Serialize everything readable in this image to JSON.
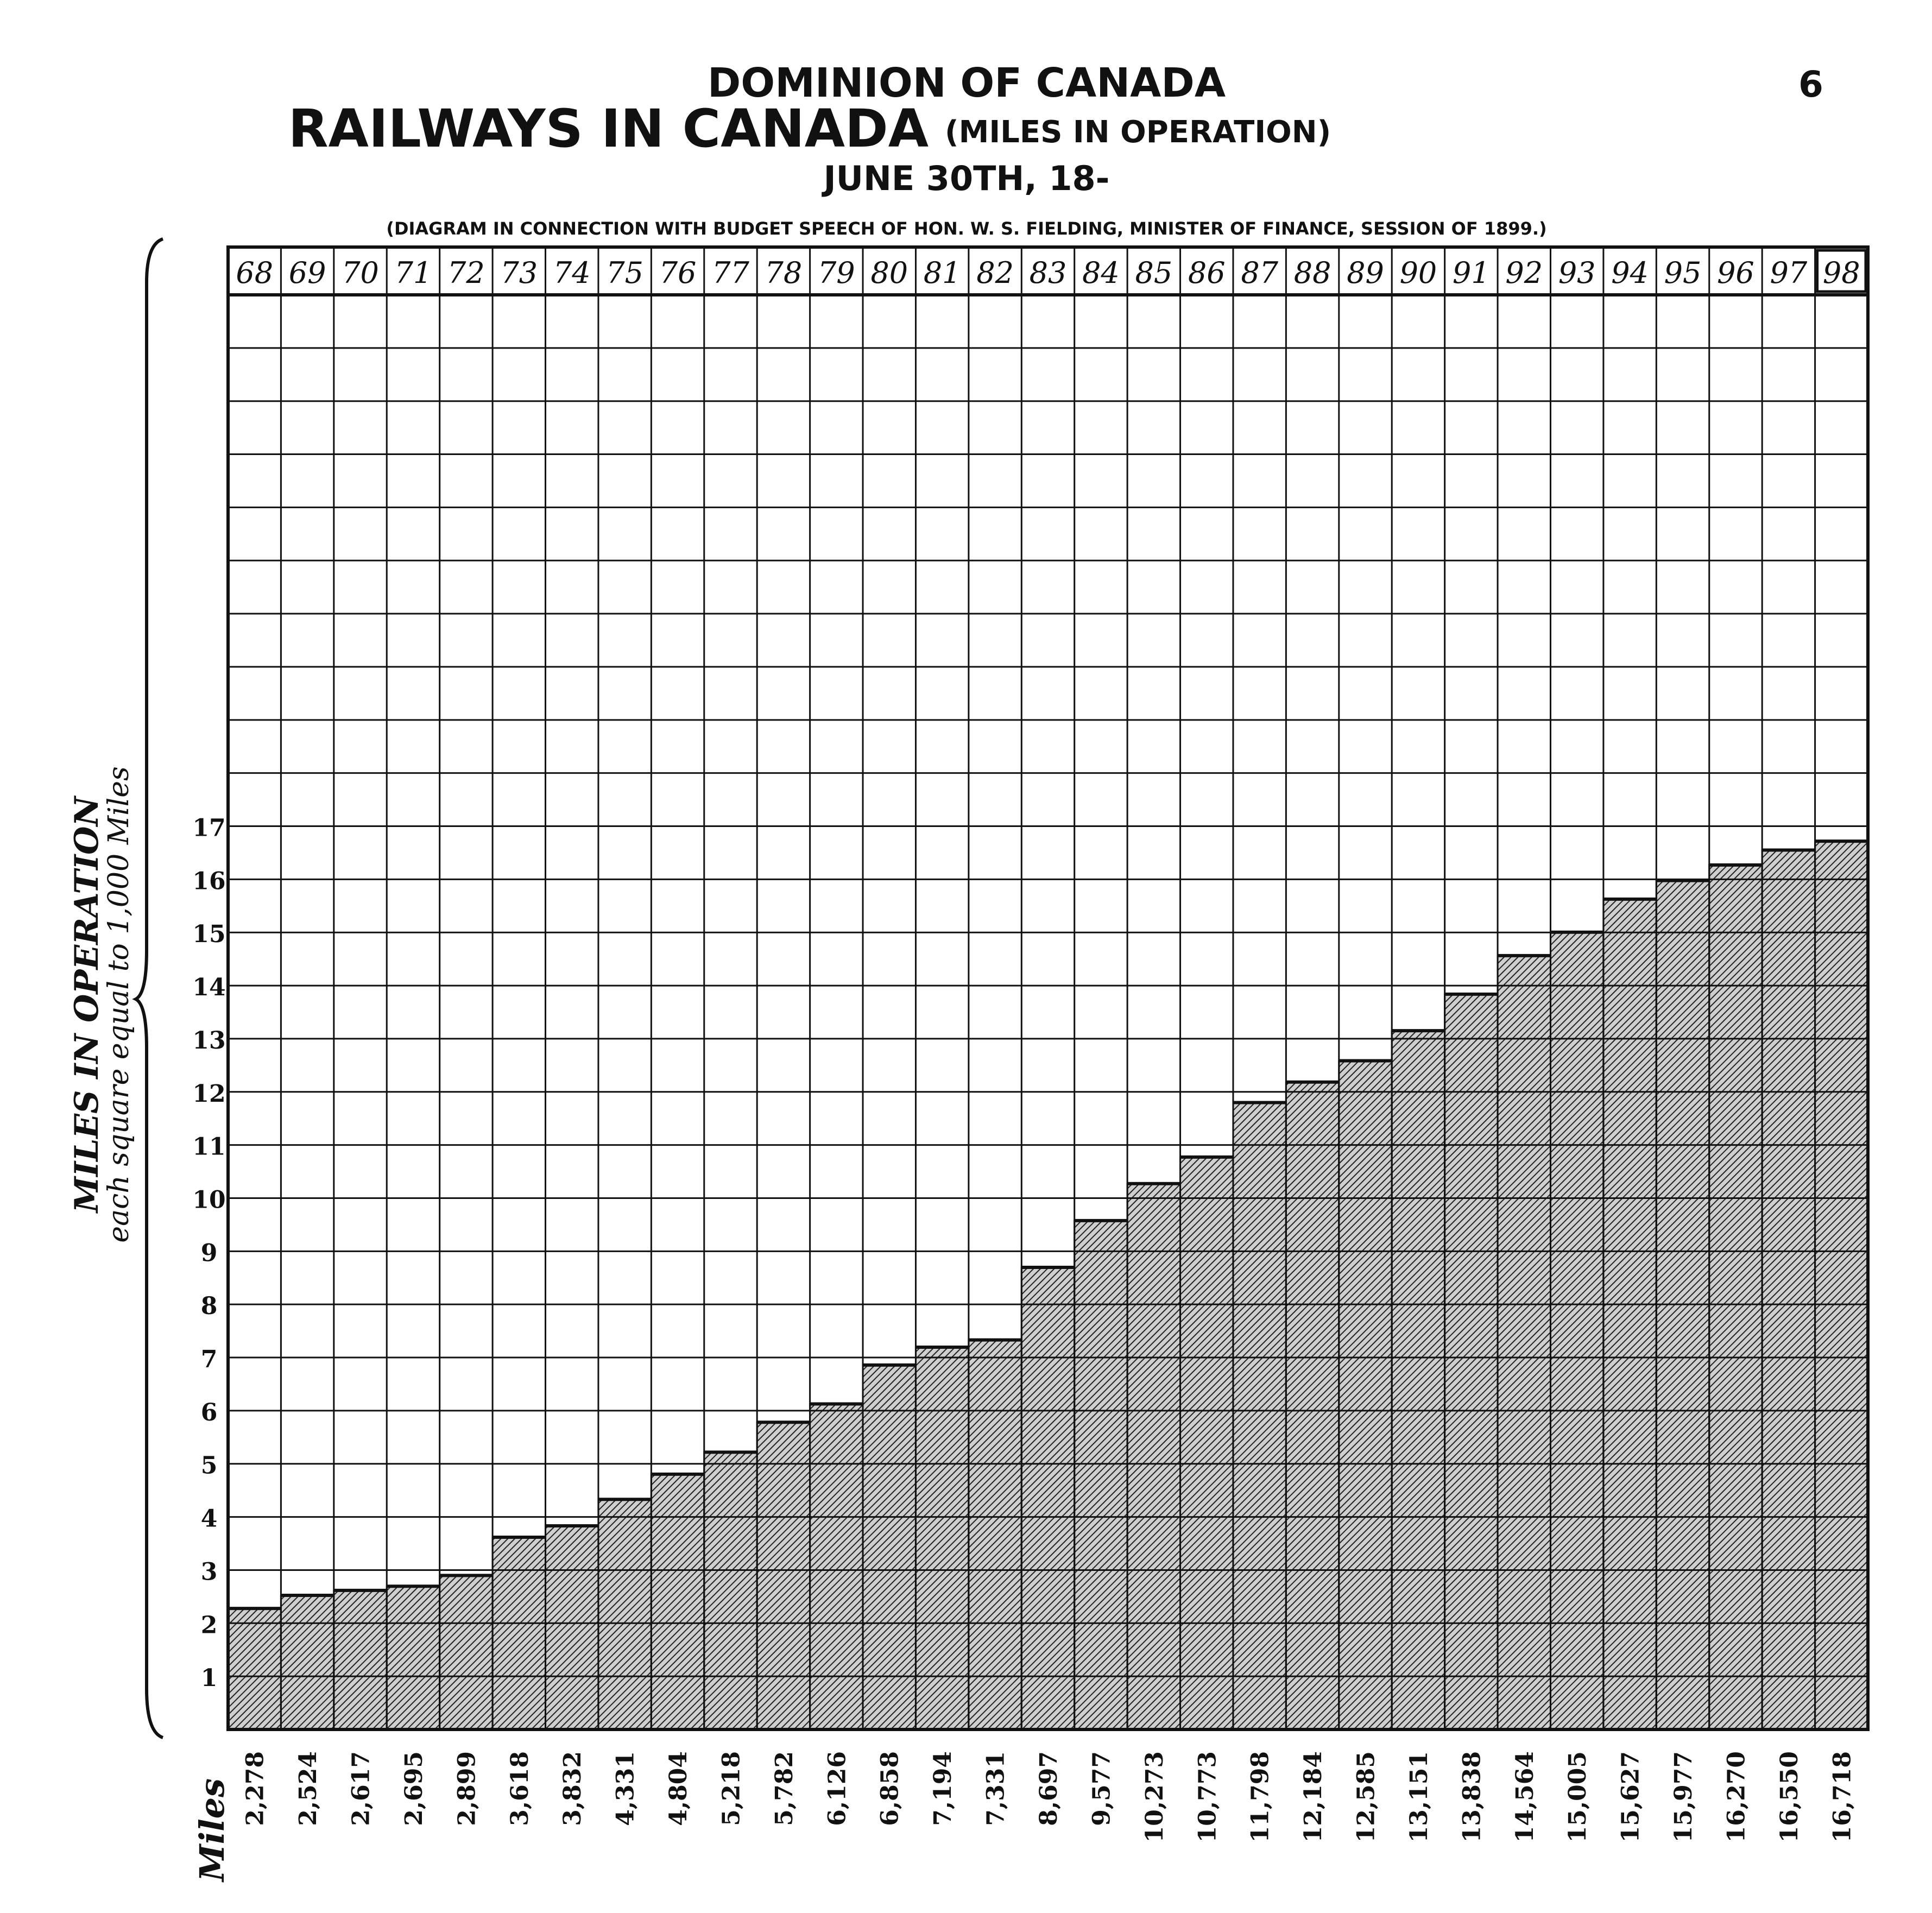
{
  "header": {
    "line1": "DOMINION OF CANADA",
    "line2": "RAILWAYS IN CANADA",
    "line2_sub": "(MILES IN OPERATION)",
    "line3": "JUNE 30TH, 18-",
    "line4": "(DIAGRAM IN CONNECTION WITH BUDGET SPEECH OF HON. W. S. FIELDING, MINISTER OF FINANCE, SESSION OF 1899.)",
    "page_number": "6"
  },
  "axis_caption": {
    "line1": "MILES IN OPERATION",
    "line2": "each square equal to 1,000 Miles"
  },
  "miles_caption": "Miles",
  "colors": {
    "ink": "#111111",
    "paper": "#ffffff",
    "fill_base": "#cfcfcf"
  },
  "chart_data": {
    "type": "bar",
    "title": "RAILWAYS IN CANADA (MILES IN OPERATION)",
    "categories": [
      "68",
      "69",
      "70",
      "71",
      "72",
      "73",
      "74",
      "75",
      "76",
      "77",
      "78",
      "79",
      "80",
      "81",
      "82",
      "83",
      "84",
      "85",
      "86",
      "87",
      "88",
      "89",
      "90",
      "91",
      "92",
      "93",
      "94",
      "95",
      "96",
      "97",
      "98"
    ],
    "values": [
      2278,
      2524,
      2617,
      2695,
      2899,
      3618,
      3832,
      4331,
      4804,
      5218,
      5782,
      6126,
      6858,
      7194,
      7331,
      8697,
      9577,
      10273,
      10773,
      11798,
      12184,
      12585,
      13151,
      13838,
      14564,
      15005,
      15627,
      15977,
      16270,
      16550,
      16718
    ],
    "value_labels": [
      "2,278",
      "2,524",
      "2,617",
      "2,695",
      "2,899",
      "3,618",
      "3,832",
      "4,331",
      "4,804",
      "5,218",
      "5,782",
      "6,126",
      "6,858",
      "7,194",
      "7,331",
      "8,697",
      "9,577",
      "10,273",
      "10,773",
      "11,798",
      "12,184",
      "12,585",
      "13,151",
      "13,838",
      "14,564",
      "15,005",
      "15,627",
      "15,977",
      "16,270",
      "16,550",
      "16,718"
    ],
    "y_ticks": [
      "1",
      "2",
      "3",
      "4",
      "5",
      "6",
      "7",
      "8",
      "9",
      "10",
      "11",
      "12",
      "13",
      "14",
      "15",
      "16",
      "17"
    ],
    "ylabel": "MILES IN OPERATION",
    "xlabel": "",
    "ylim": [
      0,
      27000
    ],
    "grid": true,
    "legend": "none"
  }
}
